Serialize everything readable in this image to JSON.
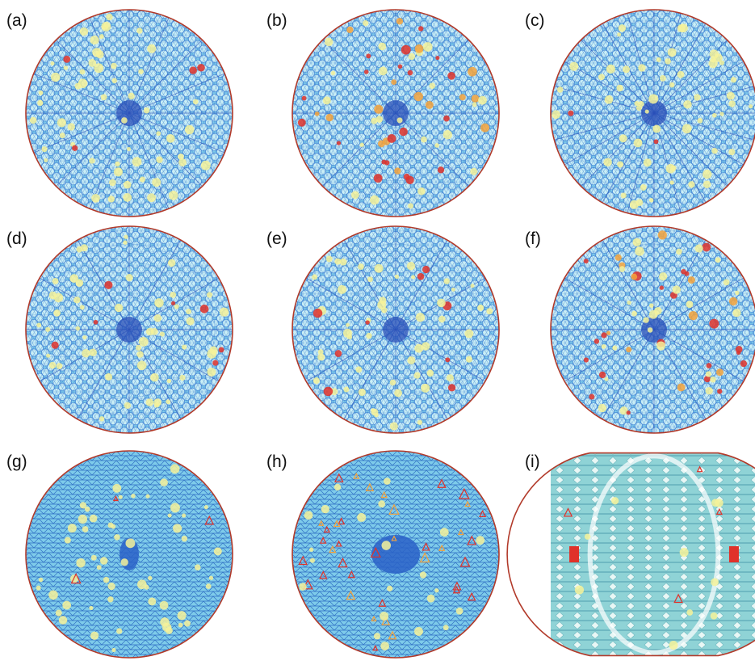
{
  "figure": {
    "colors": {
      "background": "#ffffff",
      "mesh_fill": "#7ecbea",
      "mesh_line_dark": "#2a4fb8",
      "mesh_line_mid": "#3d7fd0",
      "cell_light": "#c9eef6",
      "highlight_yellow": "#f6f29a",
      "highlight_orange": "#f5a33c",
      "highlight_red": "#e0322a",
      "rim": "#b23a2a"
    },
    "panels": [
      {
        "label": "(a)",
        "pattern": "dense-8-fold-spokes",
        "symmetry": 8
      },
      {
        "label": "(b)",
        "pattern": "dense-yellow-red-rim",
        "symmetry": 4
      },
      {
        "label": "(c)",
        "pattern": "12-fold-star",
        "symmetry": 12
      },
      {
        "label": "(d)",
        "pattern": "6-fold-rhombic",
        "symmetry": 6
      },
      {
        "label": "(e)",
        "pattern": "6-fold-triangles",
        "symmetry": 6
      },
      {
        "label": "(f)",
        "pattern": "red-triangles-ring",
        "symmetry": 6
      },
      {
        "label": "(g)",
        "pattern": "horizontal-lattice-ellipse-core",
        "symmetry": 2
      },
      {
        "label": "(h)",
        "pattern": "horizontal-lattice-orange",
        "symmetry": 2
      },
      {
        "label": "(i)",
        "pattern": "truncated-horizontal-lattice",
        "symmetry": 2
      }
    ]
  }
}
